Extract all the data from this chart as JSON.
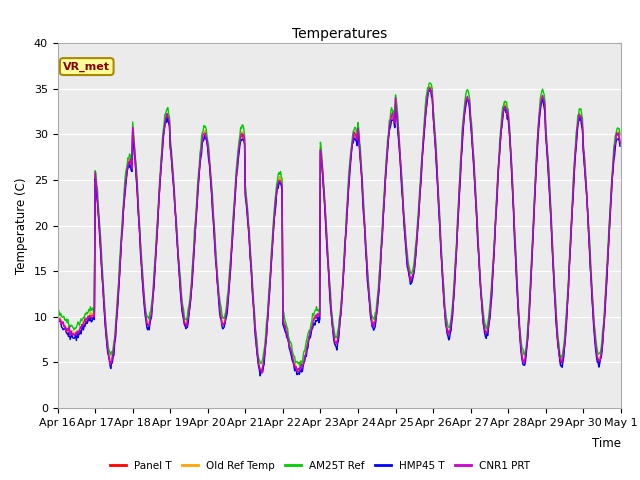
{
  "title": "Temperatures",
  "xlabel": "Time",
  "ylabel": "Temperature (C)",
  "ylim": [
    0,
    40
  ],
  "series": [
    "Panel T",
    "Old Ref Temp",
    "AM25T Ref",
    "HMP45 T",
    "CNR1 PRT"
  ],
  "colors": [
    "#ff0000",
    "#ffa500",
    "#00cc00",
    "#0000ff",
    "#cc00cc"
  ],
  "x_tick_labels": [
    "Apr 16",
    "Apr 17",
    "Apr 18",
    "Apr 19",
    "Apr 20",
    "Apr 21",
    "Apr 22",
    "Apr 23",
    "Apr 24",
    "Apr 25",
    "Apr 26",
    "Apr 27",
    "Apr 28",
    "Apr 29",
    "Apr 30",
    "May 1"
  ],
  "annotation_text": "VR_met",
  "bg_color": "#ebebeb",
  "day_peaks": [
    10,
    27,
    32,
    30,
    30,
    25,
    10,
    30,
    32,
    35,
    34,
    33,
    34,
    32,
    30
  ],
  "day_mins": [
    8,
    5,
    9,
    9,
    9,
    4,
    4,
    7,
    9,
    14,
    8,
    8,
    5,
    5,
    5
  ]
}
